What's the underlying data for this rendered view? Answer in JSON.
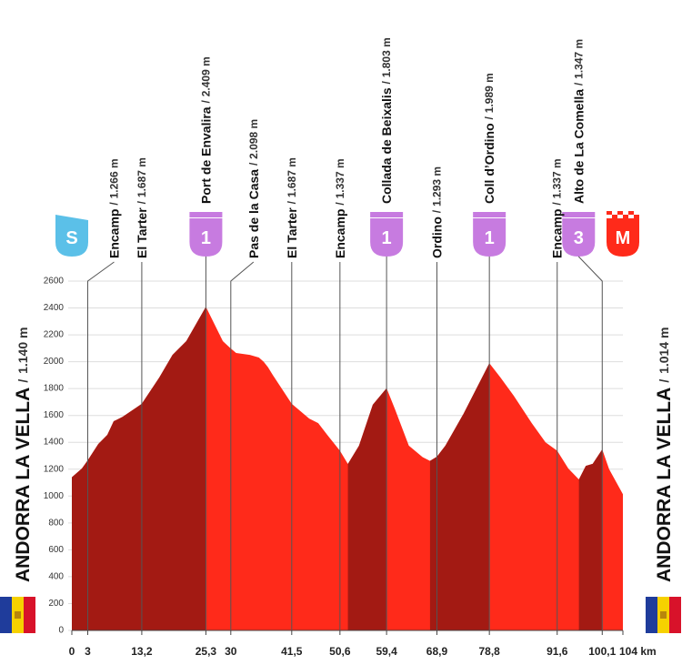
{
  "chart_data": {
    "type": "area",
    "x": [
      0,
      1.9,
      3,
      5,
      6.7,
      7.9,
      9.6,
      12.2,
      13.2,
      16.5,
      19,
      21.6,
      25.3,
      28.5,
      30,
      31,
      33.6,
      35.3,
      36.2,
      37,
      37.9,
      41.5,
      44.8,
      46.5,
      48.2,
      50.6,
      52.1,
      54.2,
      56.8,
      59.4,
      61,
      63.6,
      66.2,
      67.6,
      68.9,
      70.5,
      73.9,
      78.8,
      80.9,
      83.4,
      86.8,
      89.4,
      91.6,
      93.7,
      95.7,
      97,
      98.3,
      100.1,
      101.4,
      104
    ],
    "values": [
      1140,
      1205,
      1266,
      1388,
      1456,
      1557,
      1590,
      1660,
      1687,
      1882,
      2051,
      2153,
      2409,
      2153,
      2098,
      2065,
      2051,
      2031,
      2000,
      1960,
      1903,
      1687,
      1577,
      1543,
      1456,
      1337,
      1239,
      1375,
      1680,
      1803,
      1645,
      1375,
      1290,
      1262,
      1293,
      1375,
      1611,
      1989,
      1882,
      1747,
      1543,
      1400,
      1337,
      1205,
      1124,
      1225,
      1240,
      1347,
      1200,
      1014
    ],
    "color": "#ff2a1a",
    "climb_color": "#a31a13",
    "xlim": [
      0,
      104
    ],
    "ylim": [
      0,
      2600
    ],
    "yticks": [
      0,
      200,
      400,
      600,
      800,
      1000,
      1200,
      1400,
      1600,
      1800,
      2000,
      2200,
      2400,
      2600
    ],
    "xticks": [
      0,
      3,
      {
        "value": 13.2,
        "label": "13,2"
      },
      {
        "value": 25.3,
        "label": "25,3"
      },
      30,
      {
        "value": 41.5,
        "label": "41,5"
      },
      {
        "value": 50.6,
        "label": "50,6"
      },
      {
        "value": 59.4,
        "label": "59,4"
      },
      {
        "value": 68.9,
        "label": "68,9"
      },
      {
        "value": 78.8,
        "label": "78,8"
      },
      {
        "value": 91.6,
        "label": "91,6"
      },
      {
        "value": 100.1,
        "label": "100,1"
      },
      {
        "value": 104,
        "label": "104 km"
      }
    ],
    "grid": true,
    "separator": "/",
    "start_label": "ANDORRA LA VELLA",
    "start_elevation": "1.140 m",
    "finish_label": "ANDORRA LA VELLA",
    "finish_elevation": "1.014 m",
    "waypoints": {
      "names": [
        "Encamp",
        "El Tarter",
        "Port de Envalira",
        "Pas de la Casa",
        "El Tarter",
        "Encamp",
        "Collada de Beixalis",
        "Ordino",
        "Coll d’Ordino",
        "Encamp",
        "Alto de La Comella"
      ],
      "km": [
        3,
        13.2,
        25.3,
        30,
        41.5,
        50.6,
        59.4,
        68.9,
        78.8,
        91.6,
        100.1
      ],
      "elevation_labels": [
        "1.266 m",
        "1.687 m",
        "2.409 m",
        "2.098 m",
        "1.687 m",
        "1.337 m",
        "1.803 m",
        "1.293 m",
        "1.989 m",
        "1.337 m",
        "1.347 m"
      ]
    },
    "badges": [
      {
        "label": "S",
        "km": 0,
        "kind": "start",
        "color": "#5bc0e8"
      },
      {
        "label": "1",
        "km": 25.3,
        "kind": "climb",
        "color": "#c77be0"
      },
      {
        "label": "1",
        "km": 59.4,
        "kind": "climb",
        "color": "#c77be0"
      },
      {
        "label": "1",
        "km": 78.8,
        "kind": "climb",
        "color": "#c77be0"
      },
      {
        "label": "3",
        "km": 100.1,
        "kind": "climb",
        "color": "#c77be0"
      },
      {
        "label": "M",
        "km": 104,
        "kind": "finish",
        "color": "#ff2a1a"
      }
    ]
  }
}
